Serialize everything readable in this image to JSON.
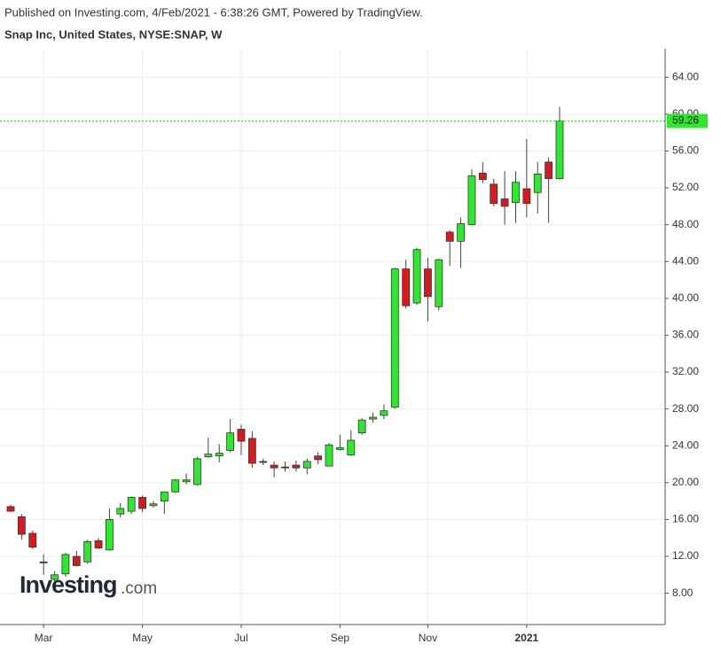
{
  "chart_data": {
    "type": "candlestick",
    "published": "Published on Investing.com, 4/Feb/2021 - 6:38:26 GMT, Powered by TradingView.",
    "title": "Snap Inc, United States, NYSE:SNAP, W",
    "watermark": "Investing",
    "watermark_suffix": ".com",
    "categories": [
      null,
      null,
      null,
      "Mar",
      null,
      null,
      null,
      null,
      null,
      null,
      null,
      null,
      "May",
      null,
      null,
      null,
      null,
      null,
      null,
      null,
      null,
      "Jul",
      null,
      null,
      null,
      null,
      null,
      null,
      null,
      null,
      "Sep",
      null,
      null,
      null,
      null,
      null,
      null,
      null,
      "Nov",
      null,
      null,
      null,
      null,
      null,
      null,
      null,
      null,
      "2021",
      null,
      null,
      null
    ],
    "open": [
      17.4,
      16.3,
      14.5,
      11.4,
      9.5,
      10.1,
      12.0,
      11.4,
      13.7,
      12.7,
      16.6,
      16.9,
      18.4,
      17.5,
      18.0,
      19.0,
      20.1,
      19.8,
      22.8,
      22.9,
      23.5,
      25.8,
      24.8,
      22.3,
      21.9,
      21.7,
      21.9,
      21.6,
      22.9,
      21.8,
      23.6,
      23.0,
      25.4,
      26.9,
      27.3,
      28.2,
      43.2,
      39.5,
      43.2,
      39.1,
      47.2,
      46.2,
      48.0,
      53.6,
      52.4,
      50.8,
      50.4,
      51.9,
      51.5,
      54.8,
      53.0
    ],
    "high": [
      17.6,
      16.6,
      14.8,
      12.2,
      10.4,
      12.4,
      12.6,
      13.8,
      14.0,
      17.2,
      17.8,
      18.5,
      18.6,
      18.0,
      19.0,
      20.4,
      21.0,
      22.8,
      24.9,
      24.2,
      26.9,
      26.3,
      25.6,
      22.6,
      22.3,
      22.3,
      22.4,
      22.6,
      23.3,
      24.3,
      25.2,
      25.7,
      27.0,
      27.6,
      28.5,
      43.3,
      44.2,
      45.5,
      44.4,
      44.3,
      47.4,
      48.8,
      54.0,
      54.8,
      53.0,
      53.8,
      53.8,
      57.3,
      54.8,
      55.3,
      60.8
    ],
    "low": [
      16.8,
      13.8,
      12.8,
      10.0,
      9.0,
      9.8,
      10.9,
      11.2,
      12.8,
      12.6,
      16.2,
      16.6,
      16.8,
      17.3,
      16.6,
      18.9,
      19.8,
      19.7,
      22.7,
      22.2,
      23.3,
      23.0,
      21.6,
      21.9,
      20.6,
      21.2,
      21.2,
      20.9,
      22.0,
      21.8,
      23.5,
      22.9,
      25.2,
      26.5,
      26.9,
      28.0,
      38.9,
      39.3,
      37.5,
      38.7,
      43.5,
      43.3,
      47.9,
      52.5,
      50.0,
      48.0,
      48.2,
      48.8,
      49.2,
      48.2,
      52.9
    ],
    "close": [
      16.9,
      14.4,
      13.0,
      11.3,
      10.0,
      12.2,
      11.0,
      13.6,
      12.9,
      16.0,
      17.2,
      18.4,
      17.2,
      17.7,
      19.0,
      20.3,
      20.3,
      22.6,
      23.1,
      23.2,
      25.4,
      24.5,
      22.1,
      22.2,
      21.6,
      21.6,
      21.6,
      22.3,
      22.5,
      24.1,
      23.8,
      24.6,
      26.8,
      27.1,
      27.8,
      43.2,
      39.2,
      45.3,
      40.2,
      44.2,
      46.2,
      48.1,
      53.3,
      52.9,
      50.3,
      50.0,
      52.6,
      50.3,
      53.5,
      53.0,
      59.26
    ],
    "up_color": "#2ee82e",
    "down_color": "#d9191c",
    "last_value": 59.26,
    "ylim": [
      4.6,
      67.1
    ],
    "yticks": [
      {
        "value": 8,
        "label": "8.00"
      },
      {
        "value": 12,
        "label": "12.00"
      },
      {
        "value": 16,
        "label": "16.00"
      },
      {
        "value": 20,
        "label": "20.00"
      },
      {
        "value": 24,
        "label": "24.00"
      },
      {
        "value": 28,
        "label": "28.00"
      },
      {
        "value": 32,
        "label": "32.00"
      },
      {
        "value": 36,
        "label": "36.00"
      },
      {
        "value": 40,
        "label": "40.00"
      },
      {
        "value": 44,
        "label": "44.00"
      },
      {
        "value": 48,
        "label": "48.00"
      },
      {
        "value": 52,
        "label": "52.00"
      },
      {
        "value": 56,
        "label": "56.00"
      },
      {
        "value": 60,
        "label": "60.00"
      },
      {
        "value": 64,
        "label": "64.00"
      }
    ],
    "grid": true
  }
}
